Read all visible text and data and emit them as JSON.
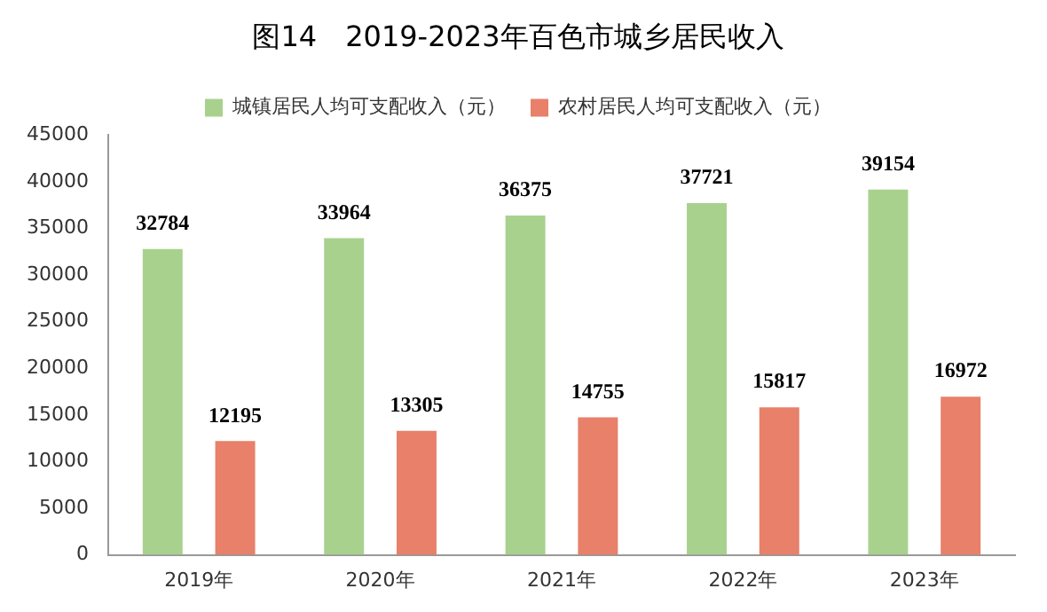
{
  "chart_data": {
    "type": "bar",
    "title": "图14　2019-2023年百色市城乡居民收入",
    "categories": [
      "2019年",
      "2020年",
      "2021年",
      "2022年",
      "2023年"
    ],
    "series": [
      {
        "name": "城镇居民人均可支配收入（元）",
        "color": "#a9d18e",
        "values": [
          32784,
          33964,
          36375,
          37721,
          39154
        ]
      },
      {
        "name": "农村居民人均可支配收入（元）",
        "color": "#e8806a",
        "values": [
          12195,
          13305,
          14755,
          15817,
          16972
        ]
      }
    ],
    "ylim": [
      0,
      45000
    ],
    "yticks": [
      0,
      5000,
      10000,
      15000,
      20000,
      25000,
      30000,
      35000,
      40000,
      45000
    ],
    "grid": false,
    "legend": "top",
    "data_labels": true
  }
}
